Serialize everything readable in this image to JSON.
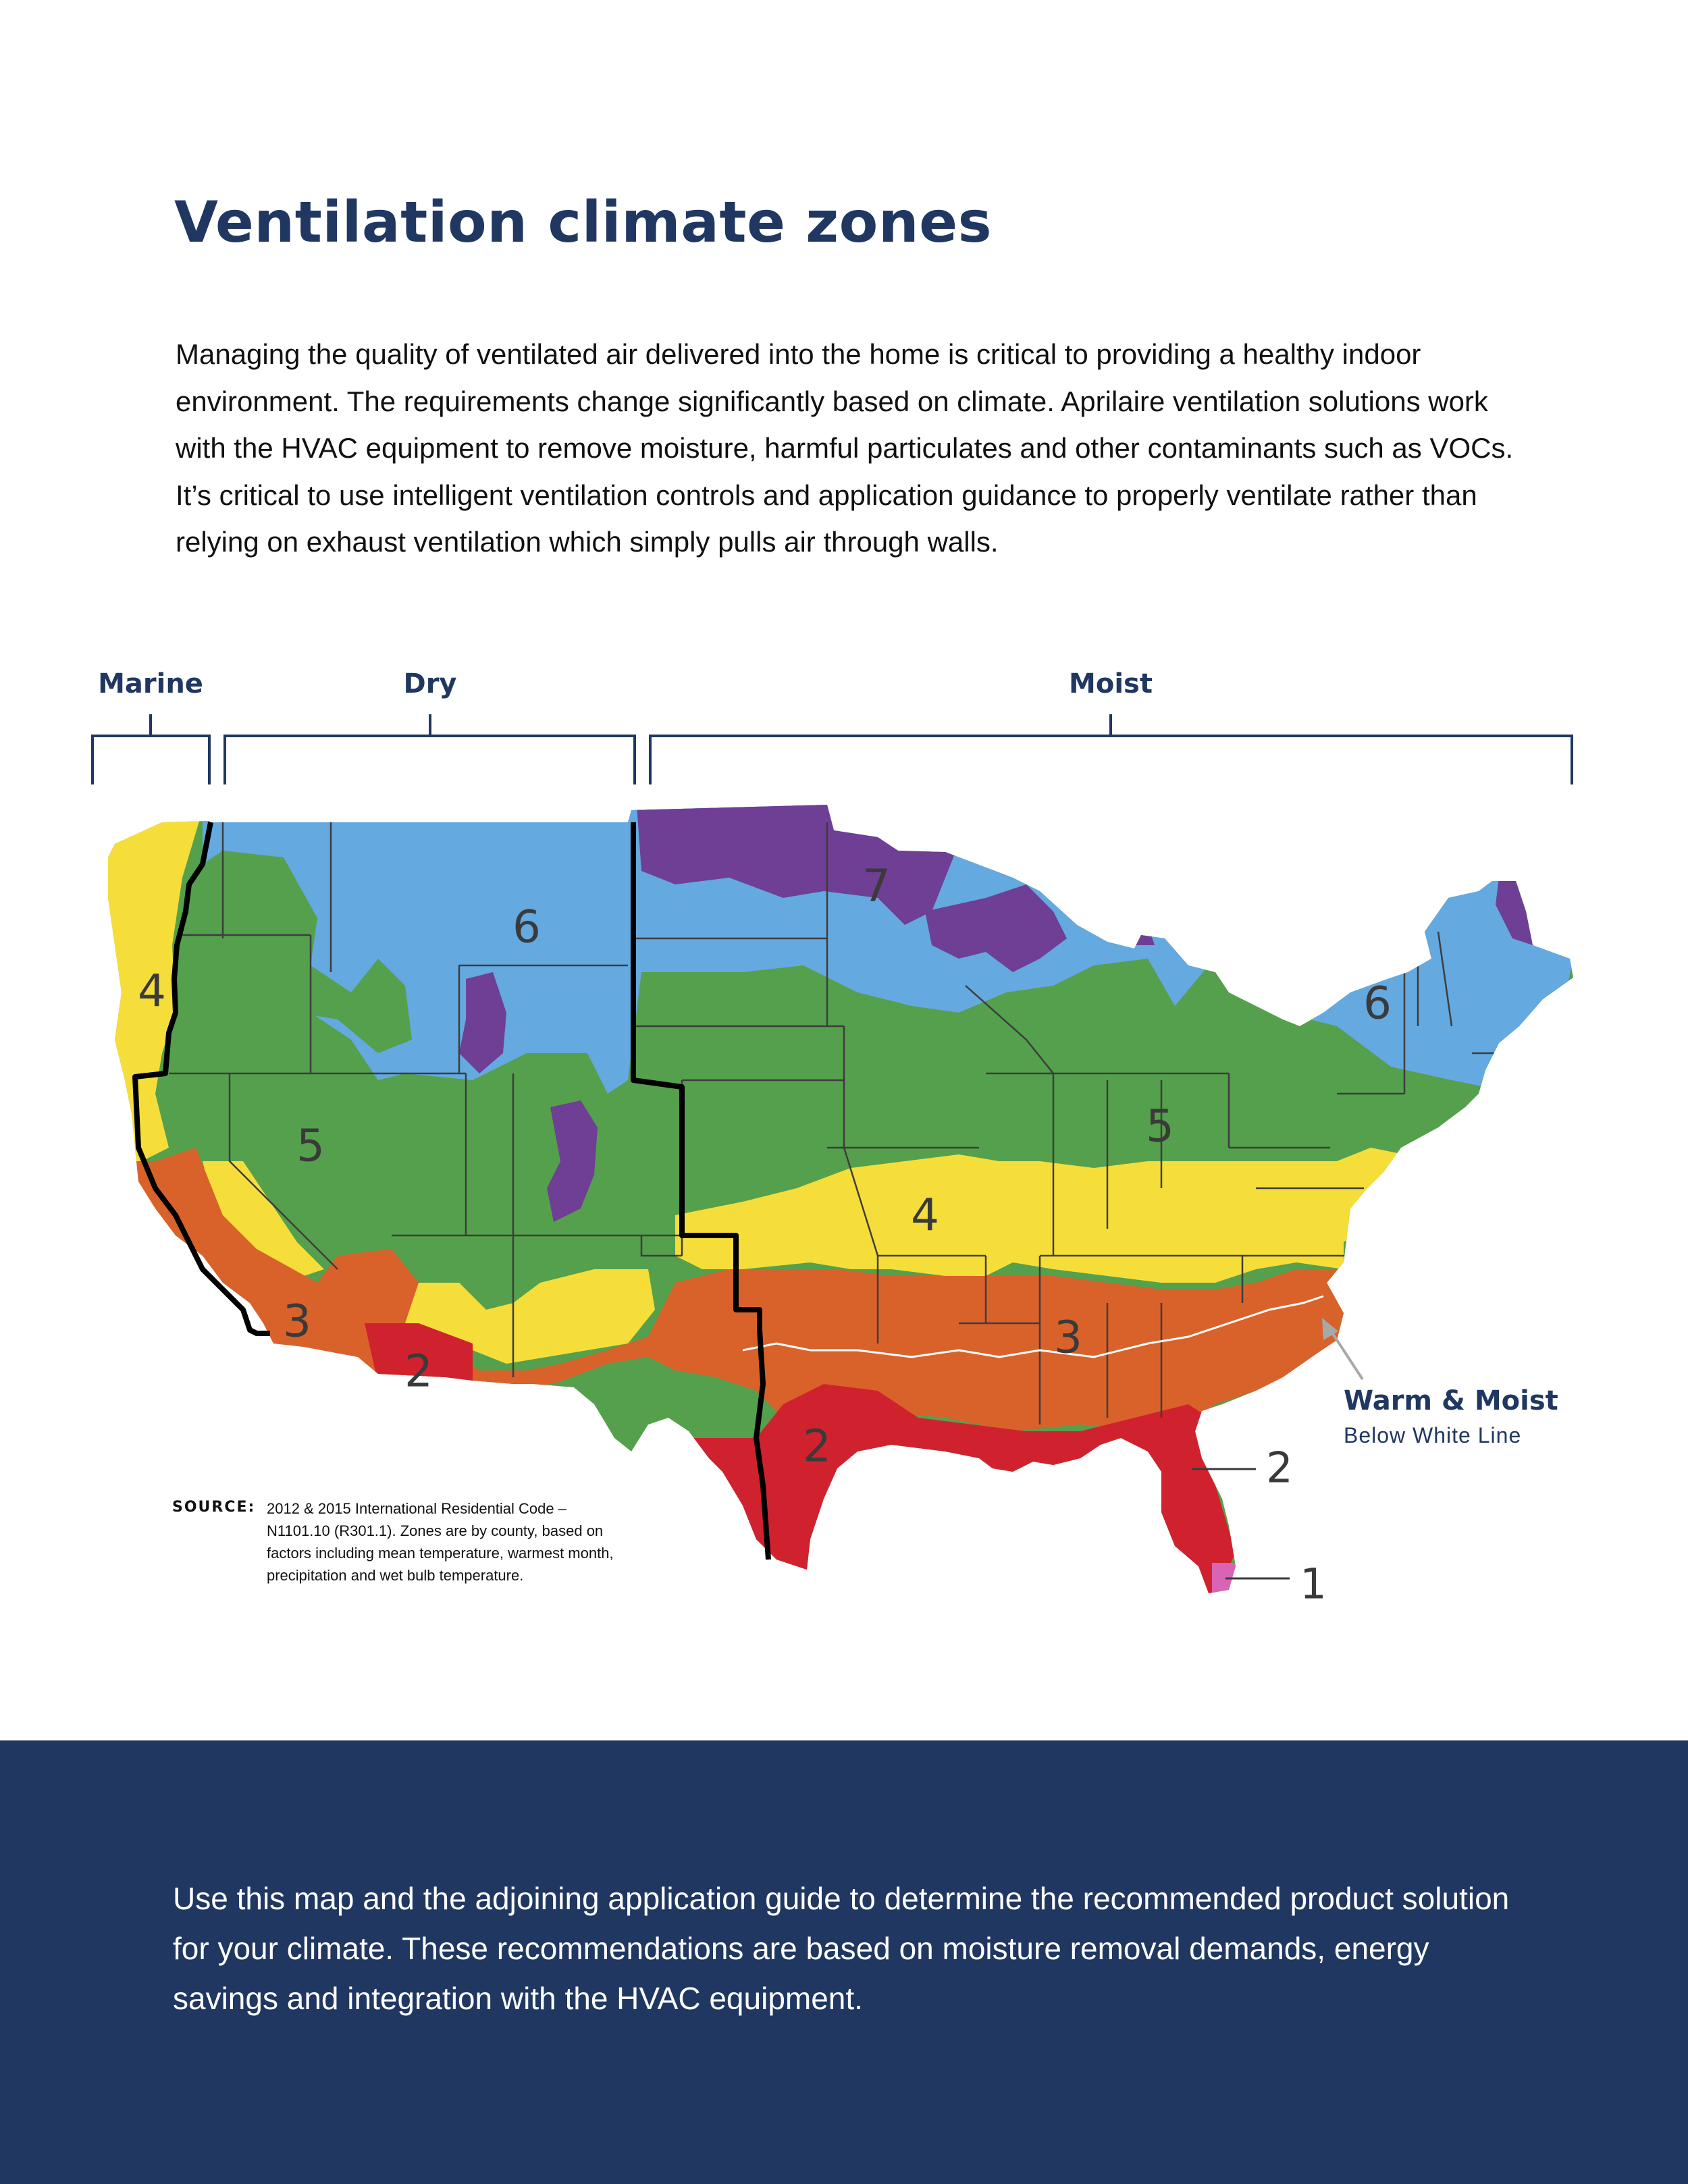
{
  "title": "Ventilation climate zones",
  "intro": "Managing the quality of ventilated air delivered into the home is critical to providing a healthy indoor environment. The requirements change significantly based on climate. Aprilaire ventilation solutions work with the HVAC equipment to remove moisture, harmful particulates and other contaminants such as VOCs. It’s critical to use intelligent ventilation controls and application guidance to properly ventilate rather than relying on exhaust ventilation which simply pulls air through walls.",
  "brackets": {
    "marine": "Marine",
    "dry": "Dry",
    "moist": "Moist"
  },
  "zone_colors": {
    "1": "#d963b4",
    "2": "#d0222e",
    "3": "#d9622b",
    "4": "#f6de3a",
    "5": "#55a04c",
    "6": "#64a9e0",
    "7": "#6e3f94"
  },
  "zone_labels": [
    "6",
    "4",
    "5",
    "3",
    "2",
    "7",
    "4",
    "5",
    "6",
    "3",
    "2"
  ],
  "callouts": {
    "zone2": "2",
    "zone1": "1",
    "warm_title": "Warm & Moist",
    "warm_sub": "Below White Line"
  },
  "source": {
    "label": "SOURCE:",
    "text": "2012 & 2015 International Residential Code – N1101.10 (R301.1). Zones are by county, based on factors including mean temperature, warmest month, precipitation and wet bulb temperature."
  },
  "footer": "Use this map and the adjoining application guide to determine the recommended product solution for your climate. These recommendations are based on moisture removal demands, energy savings and integration with the HVAC equipment."
}
